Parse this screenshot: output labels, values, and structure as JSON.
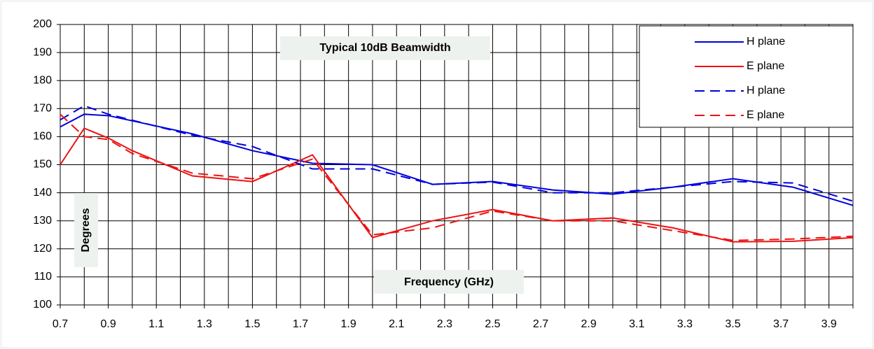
{
  "chart_data": {
    "type": "line",
    "title": "Typical 10dB Beamwidth",
    "x_label": "Frequency  (GHz)",
    "y_label": "Degrees",
    "xlim": [
      0.7,
      4.0
    ],
    "ylim": [
      100,
      200
    ],
    "xticks": [
      0.7,
      {
        "value": 0.8,
        "label": null
      },
      0.9,
      {
        "value": 1.0,
        "label": null
      },
      1.1,
      {
        "value": 1.2,
        "label": null
      },
      1.3,
      {
        "value": 1.4,
        "label": null
      },
      1.5,
      {
        "value": 1.6,
        "label": null
      },
      1.7,
      {
        "value": 1.8,
        "label": null
      },
      1.9,
      {
        "value": 2.0,
        "label": null
      },
      2.1,
      {
        "value": 2.2,
        "label": null
      },
      2.3,
      {
        "value": 2.4,
        "label": null
      },
      2.5,
      {
        "value": 2.6,
        "label": null
      },
      2.7,
      {
        "value": 2.8,
        "label": null
      },
      2.9,
      {
        "value": 3.0,
        "label": null
      },
      3.1,
      {
        "value": 3.2,
        "label": null
      },
      3.3,
      {
        "value": 3.4,
        "label": null
      },
      3.5,
      {
        "value": 3.6,
        "label": null
      },
      3.7,
      {
        "value": 3.8,
        "label": null
      },
      3.9,
      {
        "value": 4.0,
        "label": null
      }
    ],
    "yticks": [
      100,
      110,
      120,
      130,
      140,
      150,
      160,
      170,
      180,
      190,
      200
    ],
    "grid": true,
    "legend": "upper right",
    "series": [
      {
        "name": "H plane",
        "color": "#0000dd",
        "style": "solid",
        "x": [
          0.7,
          0.8,
          0.9,
          1.25,
          1.5,
          1.75,
          2.0,
          2.25,
          2.5,
          2.75,
          3.0,
          3.25,
          3.5,
          3.75,
          4.0
        ],
        "values": [
          163.5,
          168,
          167.5,
          161,
          155,
          150.5,
          150,
          143,
          144,
          141,
          139.5,
          142,
          145,
          142,
          135.5
        ]
      },
      {
        "name": "E plane",
        "color": "#ee1111",
        "style": "solid",
        "x": [
          0.7,
          0.8,
          0.9,
          1.0,
          1.25,
          1.5,
          1.75,
          2.0,
          2.25,
          2.5,
          2.75,
          3.0,
          3.25,
          3.5,
          3.75,
          4.0
        ],
        "values": [
          150,
          163,
          159.5,
          155,
          146,
          144,
          153.5,
          124,
          130,
          134,
          130,
          131,
          127.5,
          122.5,
          122.7,
          124
        ]
      },
      {
        "name": "H plane",
        "color": "#0000dd",
        "style": "dashed",
        "x": [
          0.7,
          0.8,
          0.9,
          1.25,
          1.5,
          1.75,
          2.0,
          2.25,
          2.5,
          2.75,
          3.0,
          3.25,
          3.5,
          3.75,
          4.0
        ],
        "values": [
          166,
          171,
          168,
          160.5,
          156.5,
          148.5,
          148.5,
          143,
          143.8,
          140,
          140,
          142,
          144,
          143.5,
          137
        ]
      },
      {
        "name": "E plane",
        "color": "#ee1111",
        "style": "dashed",
        "x": [
          0.7,
          0.8,
          0.9,
          1.0,
          1.25,
          1.5,
          1.75,
          2.0,
          2.25,
          2.5,
          2.75,
          3.0,
          3.25,
          3.5,
          3.75,
          4.0
        ],
        "values": [
          168,
          160,
          159,
          154,
          147,
          145,
          152,
          125,
          127.5,
          133.5,
          130,
          130,
          126.5,
          123,
          123.5,
          124.5
        ]
      }
    ]
  }
}
